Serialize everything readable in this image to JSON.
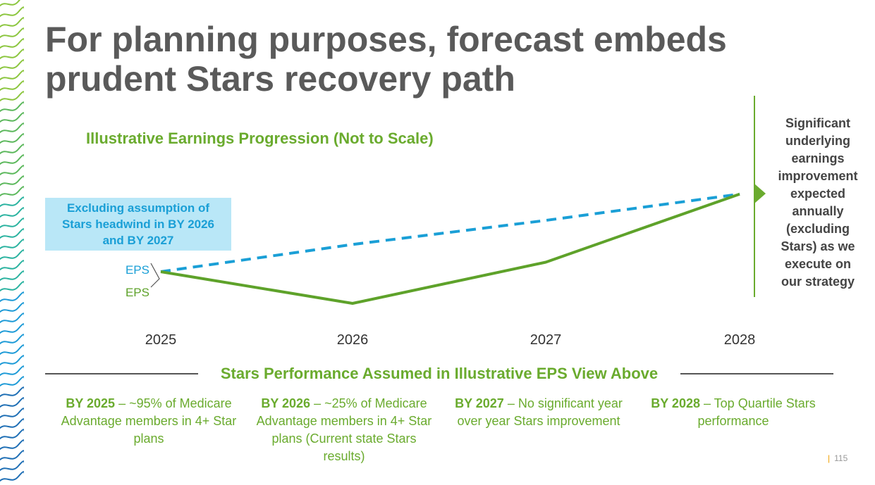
{
  "title": "For planning purposes, forecast embeds prudent Stars recovery path",
  "chart_data": {
    "type": "line",
    "title": "Illustrative Earnings Progression (Not to Scale)",
    "categories": [
      "2025",
      "2026",
      "2027",
      "2028"
    ],
    "series": [
      {
        "label": "EPS",
        "style": "dashed",
        "color": "#1a9fd6",
        "values": [
          1.0,
          1.86,
          2.62,
          3.45
        ]
      },
      {
        "label": "EPS",
        "style": "solid",
        "color": "#5ea22a",
        "values": [
          1.0,
          0.0,
          1.3,
          3.45
        ]
      }
    ],
    "ylim": [
      0,
      4.1
    ],
    "grid": false,
    "legend": "inline labels at left"
  },
  "callout": {
    "lines": [
      "Excluding assumption of",
      "Stars headwind in BY 2026",
      "and BY 2027"
    ]
  },
  "right_note": {
    "lines": [
      "Significant",
      "underlying",
      "earnings",
      "improvement",
      "expected",
      "annually",
      "(excluding",
      "Stars) as we",
      "execute on",
      "our strategy"
    ]
  },
  "stars_heading": "Stars Performance Assumed in Illustrative EPS View Above",
  "by_items": [
    {
      "label": "BY 2025",
      "text": " – ~95% of Medicare Advantage members in 4+ Star plans"
    },
    {
      "label": "BY 2026",
      "text": " – ~25% of Medicare Advantage members in 4+ Star plans (Current state Stars results)"
    },
    {
      "label": "BY 2027",
      "text": " – No significant year over year Stars improvement"
    },
    {
      "label": "BY 2028",
      "text": " – Top Quartile Stars performance"
    }
  ],
  "page_number": "115",
  "colors": {
    "green": "#6aab2e",
    "blue": "#1a9fd6",
    "title_gray": "#5a5a5a",
    "callout_bg": "#b9e7f7"
  }
}
